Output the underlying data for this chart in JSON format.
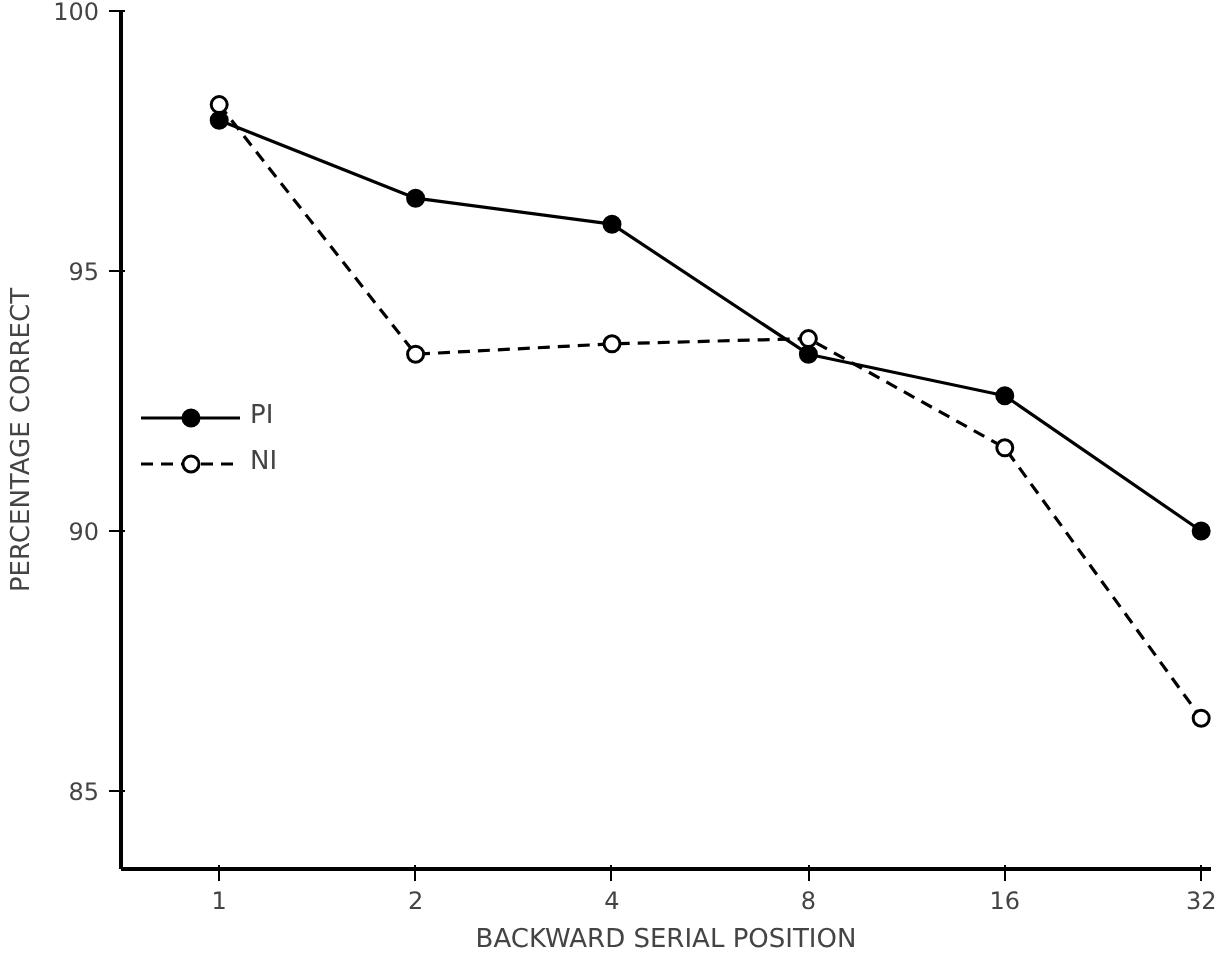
{
  "chart_data": {
    "type": "line",
    "xlabel": "BACKWARD SERIAL POSITION",
    "ylabel": "PERCENTAGE CORRECT",
    "categories": [
      "1",
      "2",
      "4",
      "8",
      "16",
      "32"
    ],
    "series": [
      {
        "name": "PI",
        "color": "#000000",
        "line_style": "solid",
        "marker": "circle",
        "values": [
          97.9,
          96.4,
          95.9,
          93.4,
          92.6,
          90.0
        ]
      },
      {
        "name": "NI",
        "color": "#000000",
        "line_style": "dashed",
        "marker": "circle",
        "values": [
          98.2,
          93.4,
          93.6,
          93.7,
          91.6,
          86.4
        ]
      }
    ],
    "ylim": [
      83.5,
      100
    ],
    "yticks": [
      85,
      90,
      95,
      100
    ],
    "grid": false,
    "legend": "left"
  }
}
